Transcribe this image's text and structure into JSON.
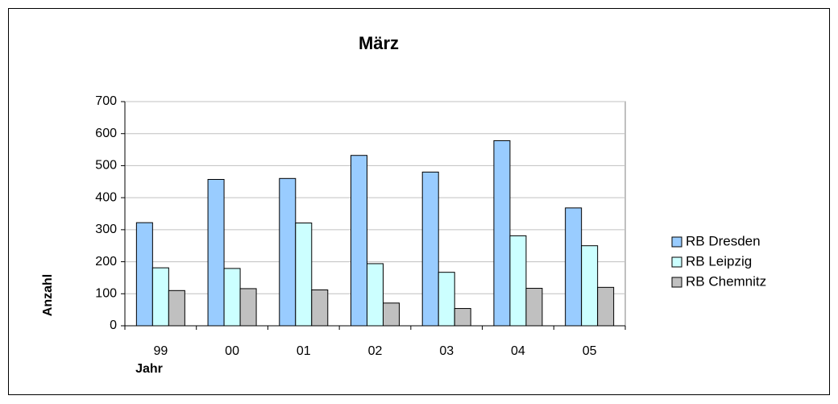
{
  "chart_data": {
    "type": "bar",
    "title": "März",
    "x_label": "Jahr",
    "y_label": "Anzahl",
    "categories": [
      "99",
      "00",
      "01",
      "02",
      "03",
      "04",
      "05"
    ],
    "series": [
      {
        "name": "RB Dresden",
        "color": "#99ccff",
        "values": [
          322,
          457,
          460,
          532,
          480,
          578,
          368
        ]
      },
      {
        "name": "RB Leipzig",
        "color": "#ccffff",
        "values": [
          181,
          179,
          321,
          194,
          167,
          281,
          250
        ]
      },
      {
        "name": "RB Chemnitz",
        "color": "#c0c0c0",
        "values": [
          110,
          116,
          112,
          71,
          54,
          117,
          120
        ]
      }
    ],
    "ylim": [
      0,
      700
    ],
    "yticks": [
      0,
      100,
      200,
      300,
      400,
      500,
      600,
      700
    ],
    "grid": true,
    "legend": "right"
  }
}
